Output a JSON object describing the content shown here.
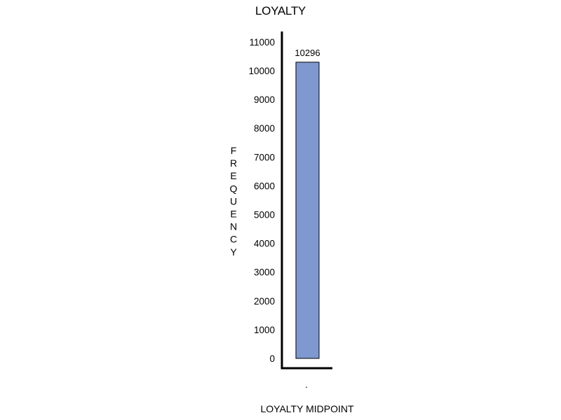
{
  "chart_data": {
    "type": "bar",
    "title": "LOYALTY",
    "xlabel": "LOYALTY  MIDPOINT",
    "ylabel": "FREQUENCY",
    "categories": [
      "."
    ],
    "values": [
      10296
    ],
    "data_labels": [
      "10296"
    ],
    "ylim": [
      0,
      11000
    ],
    "yticks": [
      0,
      1000,
      2000,
      3000,
      4000,
      5000,
      6000,
      7000,
      8000,
      9000,
      10000,
      11000
    ],
    "grid": false,
    "legend": "none",
    "colors": {
      "bar_fill": "#7f98d0",
      "bar_stroke": "#000000",
      "axis": "#000000"
    }
  }
}
